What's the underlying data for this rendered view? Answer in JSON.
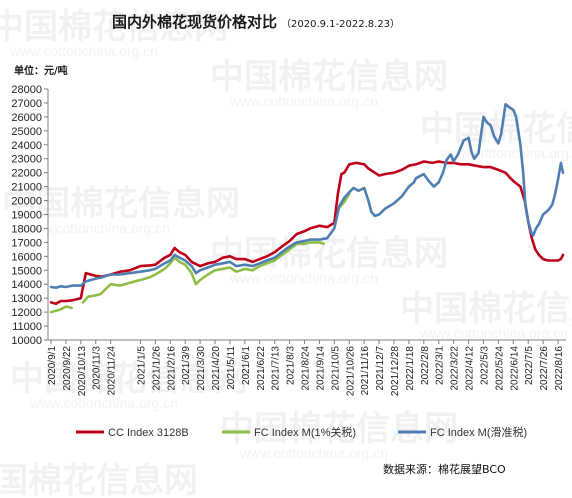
{
  "chart_data": {
    "type": "line",
    "title": "国内外棉花现货价格对比",
    "subtitle": "（2020.9.1-2022.8.23）",
    "unit_label": "单位：元/吨",
    "ylim": [
      10000,
      28000
    ],
    "yticks": [
      10000,
      11000,
      12000,
      13000,
      14000,
      15000,
      16000,
      17000,
      18000,
      19000,
      20000,
      21000,
      22000,
      23000,
      24000,
      25000,
      26000,
      27000,
      28000
    ],
    "x_start": "2020/9/1",
    "x_end": "2022/8/23",
    "categories": [
      "2020/9/1",
      "2020/9/22",
      "2020/10/13",
      "2020/11/3",
      "2020/11/24",
      "2021/1/5",
      "2021/1/26",
      "2021/2/16",
      "2021/3/9",
      "2021/3/30",
      "2021/4/20",
      "2021/5/11",
      "2021/6/1",
      "2021/6/22",
      "2021/7/13",
      "2021/8/3",
      "2021/8/24",
      "2021/9/14",
      "2021/10/5",
      "2021/10/26",
      "2021/11/16",
      "2021/12/7",
      "2021/12/28",
      "2022/1/18",
      "2022/2/8",
      "2022/3/1",
      "2022/3/22",
      "2022/4/12",
      "2022/5/3",
      "2022/5/24",
      "2022/6/14",
      "2022/7/5",
      "2022/7/26",
      "2022/8/16"
    ],
    "grid": false,
    "legend_position": "bottom",
    "series": [
      {
        "name": "CC Index 3128B",
        "color": "#c0001a",
        "points": [
          [
            "2020/9/1",
            12700
          ],
          [
            "2020/9/8",
            12600
          ],
          [
            "2020/9/15",
            12800
          ],
          [
            "2020/9/22",
            12800
          ],
          [
            "2020/10/1",
            12850
          ],
          [
            "2020/10/13",
            13000
          ],
          [
            "2020/10/20",
            14800
          ],
          [
            "2020/10/27",
            14700
          ],
          [
            "2020/11/3",
            14600
          ],
          [
            "2020/11/12",
            14550
          ],
          [
            "2020/11/24",
            14700
          ],
          [
            "2020/12/7",
            14900
          ],
          [
            "2020/12/21",
            15000
          ],
          [
            "2021/1/5",
            15300
          ],
          [
            "2021/1/18",
            15350
          ],
          [
            "2021/1/26",
            15400
          ],
          [
            "2021/2/8",
            15900
          ],
          [
            "2021/2/16",
            16100
          ],
          [
            "2021/2/22",
            16600
          ],
          [
            "2021/3/1",
            16300
          ],
          [
            "2021/3/9",
            16100
          ],
          [
            "2021/3/18",
            15600
          ],
          [
            "2021/3/30",
            15300
          ],
          [
            "2021/4/10",
            15500
          ],
          [
            "2021/4/20",
            15600
          ],
          [
            "2021/5/1",
            15900
          ],
          [
            "2021/5/11",
            16000
          ],
          [
            "2021/5/20",
            15800
          ],
          [
            "2021/6/1",
            15800
          ],
          [
            "2021/6/12",
            15600
          ],
          [
            "2021/6/22",
            15800
          ],
          [
            "2021/7/2",
            16000
          ],
          [
            "2021/7/13",
            16300
          ],
          [
            "2021/7/23",
            16700
          ],
          [
            "2021/8/3",
            17100
          ],
          [
            "2021/8/13",
            17600
          ],
          [
            "2021/8/24",
            17800
          ],
          [
            "2021/9/1",
            18000
          ],
          [
            "2021/9/14",
            18200
          ],
          [
            "2021/9/25",
            18100
          ],
          [
            "2021/10/5",
            18400
          ],
          [
            "2021/10/10",
            20500
          ],
          [
            "2021/10/15",
            21900
          ],
          [
            "2021/10/19",
            22000
          ],
          [
            "2021/10/26",
            22600
          ],
          [
            "2021/11/5",
            22700
          ],
          [
            "2021/11/16",
            22600
          ],
          [
            "2021/11/22",
            22300
          ],
          [
            "2021/12/1",
            22000
          ],
          [
            "2021/12/7",
            21800
          ],
          [
            "2021/12/15",
            21900
          ],
          [
            "2021/12/28",
            22000
          ],
          [
            "2022/1/8",
            22200
          ],
          [
            "2022/1/18",
            22500
          ],
          [
            "2022/1/28",
            22600
          ],
          [
            "2022/2/8",
            22800
          ],
          [
            "2022/2/20",
            22700
          ],
          [
            "2022/3/1",
            22800
          ],
          [
            "2022/3/12",
            22700
          ],
          [
            "2022/3/22",
            22700
          ],
          [
            "2022/4/1",
            22600
          ],
          [
            "2022/4/12",
            22600
          ],
          [
            "2022/4/22",
            22500
          ],
          [
            "2022/5/3",
            22400
          ],
          [
            "2022/5/13",
            22400
          ],
          [
            "2022/5/24",
            22200
          ],
          [
            "2022/6/3",
            22000
          ],
          [
            "2022/6/10",
            21600
          ],
          [
            "2022/6/14",
            21400
          ],
          [
            "2022/6/24",
            21000
          ],
          [
            "2022/6/30",
            20000
          ],
          [
            "2022/7/5",
            18500
          ],
          [
            "2022/7/10",
            17300
          ],
          [
            "2022/7/15",
            16500
          ],
          [
            "2022/7/20",
            16100
          ],
          [
            "2022/7/26",
            15800
          ],
          [
            "2022/8/2",
            15700
          ],
          [
            "2022/8/10",
            15700
          ],
          [
            "2022/8/16",
            15700
          ],
          [
            "2022/8/20",
            15800
          ],
          [
            "2022/8/23",
            16100
          ]
        ]
      },
      {
        "name": "FC Index M(1%关税)",
        "color": "#8fbe47",
        "points": [
          [
            "2020/9/1",
            12000
          ],
          [
            "2020/9/8",
            12100
          ],
          [
            "2020/9/15",
            12200
          ],
          [
            "2020/9/22",
            12400
          ],
          [
            "2020/9/30",
            12300
          ],
          [
            "2020/10/13",
            null
          ],
          [
            "2020/10/16",
            12700
          ],
          [
            "2020/10/23",
            13100
          ],
          [
            "2020/11/3",
            13200
          ],
          [
            "2020/11/10",
            13300
          ],
          [
            "2020/11/24",
            14000
          ],
          [
            "2020/12/7",
            13900
          ],
          [
            "2020/12/21",
            14100
          ],
          [
            "2021/1/5",
            14300
          ],
          [
            "2021/1/18",
            14500
          ],
          [
            "2021/1/26",
            14700
          ],
          [
            "2021/2/8",
            15100
          ],
          [
            "2021/2/16",
            15500
          ],
          [
            "2021/2/22",
            15900
          ],
          [
            "2021/3/1",
            15600
          ],
          [
            "2021/3/9",
            15400
          ],
          [
            "2021/3/18",
            14800
          ],
          [
            "2021/3/24",
            14000
          ],
          [
            "2021/3/30",
            14300
          ],
          [
            "2021/4/10",
            14700
          ],
          [
            "2021/4/20",
            15000
          ],
          [
            "2021/5/1",
            15100
          ],
          [
            "2021/5/11",
            15200
          ],
          [
            "2021/5/20",
            14900
          ],
          [
            "2021/6/1",
            15100
          ],
          [
            "2021/6/12",
            15000
          ],
          [
            "2021/6/22",
            15300
          ],
          [
            "2021/7/2",
            15500
          ],
          [
            "2021/7/13",
            15700
          ],
          [
            "2021/7/23",
            16100
          ],
          [
            "2021/8/3",
            16500
          ],
          [
            "2021/8/13",
            16900
          ],
          [
            "2021/8/24",
            16900
          ],
          [
            "2021/9/1",
            17000
          ],
          [
            "2021/9/14",
            17000
          ],
          [
            "2021/9/20",
            16900
          ],
          [
            "2021/9/25",
            null
          ],
          [
            "2021/10/12",
            19500
          ],
          [
            "2021/10/19",
            19900
          ],
          [
            "2021/10/26",
            20500
          ],
          [
            "2021/10/30",
            null
          ]
        ]
      },
      {
        "name": "FC Index M(滑准税)",
        "color": "#4f7fb0",
        "points": [
          [
            "2020/9/1",
            13800
          ],
          [
            "2020/9/8",
            13750
          ],
          [
            "2020/9/15",
            13850
          ],
          [
            "2020/9/22",
            13800
          ],
          [
            "2020/10/1",
            13900
          ],
          [
            "2020/10/13",
            13900
          ],
          [
            "2020/10/20",
            14200
          ],
          [
            "2020/10/27",
            14300
          ],
          [
            "2020/11/3",
            14400
          ],
          [
            "2020/11/12",
            14500
          ],
          [
            "2020/11/24",
            14700
          ],
          [
            "2020/12/7",
            14700
          ],
          [
            "2020/12/21",
            14800
          ],
          [
            "2021/1/5",
            14900
          ],
          [
            "2021/1/18",
            15000
          ],
          [
            "2021/1/26",
            15100
          ],
          [
            "2021/2/8",
            15500
          ],
          [
            "2021/2/16",
            15700
          ],
          [
            "2021/2/22",
            16100
          ],
          [
            "2021/3/1",
            15900
          ],
          [
            "2021/3/9",
            15700
          ],
          [
            "2021/3/18",
            15300
          ],
          [
            "2021/3/24",
            14800
          ],
          [
            "2021/3/30",
            15000
          ],
          [
            "2021/4/10",
            15200
          ],
          [
            "2021/4/20",
            15400
          ],
          [
            "2021/5/1",
            15500
          ],
          [
            "2021/5/11",
            15600
          ],
          [
            "2021/5/20",
            15300
          ],
          [
            "2021/6/1",
            15400
          ],
          [
            "2021/6/12",
            15300
          ],
          [
            "2021/6/22",
            15500
          ],
          [
            "2021/7/2",
            15700
          ],
          [
            "2021/7/13",
            15900
          ],
          [
            "2021/7/23",
            16300
          ],
          [
            "2021/8/3",
            16700
          ],
          [
            "2021/8/13",
            17000
          ],
          [
            "2021/8/24",
            17100
          ],
          [
            "2021/9/1",
            17200
          ],
          [
            "2021/9/14",
            17200
          ],
          [
            "2021/9/25",
            17300
          ],
          [
            "2021/10/5",
            18000
          ],
          [
            "2021/10/12",
            19600
          ],
          [
            "2021/10/19",
            20200
          ],
          [
            "2021/10/26",
            20600
          ],
          [
            "2021/11/1",
            20900
          ],
          [
            "2021/11/8",
            20700
          ],
          [
            "2021/11/16",
            20900
          ],
          [
            "2021/11/22",
            20000
          ],
          [
            "2021/11/26",
            19200
          ],
          [
            "2021/12/1",
            18900
          ],
          [
            "2021/12/7",
            19000
          ],
          [
            "2021/12/15",
            19400
          ],
          [
            "2021/12/28",
            19800
          ],
          [
            "2022/1/8",
            20300
          ],
          [
            "2022/1/18",
            21000
          ],
          [
            "2022/1/25",
            21300
          ],
          [
            "2022/1/28",
            21600
          ],
          [
            "2022/2/8",
            21900
          ],
          [
            "2022/2/15",
            21400
          ],
          [
            "2022/2/22",
            21000
          ],
          [
            "2022/3/1",
            21300
          ],
          [
            "2022/3/7",
            22000
          ],
          [
            "2022/3/12",
            22900
          ],
          [
            "2022/3/18",
            23300
          ],
          [
            "2022/3/22",
            22800
          ],
          [
            "2022/3/28",
            23300
          ],
          [
            "2022/4/5",
            24300
          ],
          [
            "2022/4/12",
            24500
          ],
          [
            "2022/4/16",
            23500
          ],
          [
            "2022/4/20",
            23000
          ],
          [
            "2022/4/26",
            23400
          ],
          [
            "2022/5/3",
            26000
          ],
          [
            "2022/5/8",
            25600
          ],
          [
            "2022/5/13",
            25400
          ],
          [
            "2022/5/18",
            24600
          ],
          [
            "2022/5/24",
            24100
          ],
          [
            "2022/5/28",
            24800
          ],
          [
            "2022/6/3",
            26900
          ],
          [
            "2022/6/8",
            26700
          ],
          [
            "2022/6/14",
            26500
          ],
          [
            "2022/6/18",
            26000
          ],
          [
            "2022/6/24",
            24000
          ],
          [
            "2022/6/28",
            22000
          ],
          [
            "2022/7/1",
            19700
          ],
          [
            "2022/7/5",
            18500
          ],
          [
            "2022/7/10",
            17600
          ],
          [
            "2022/7/12",
            17500
          ],
          [
            "2022/7/16",
            18000
          ],
          [
            "2022/7/20",
            18300
          ],
          [
            "2022/7/26",
            19000
          ],
          [
            "2022/8/2",
            19300
          ],
          [
            "2022/8/8",
            19700
          ],
          [
            "2022/8/12",
            20500
          ],
          [
            "2022/8/16",
            21500
          ],
          [
            "2022/8/20",
            22700
          ],
          [
            "2022/8/23",
            22000
          ]
        ]
      }
    ],
    "source": "数据来源：棉花展望BCO"
  },
  "watermark": {
    "brand": "中国棉花信息网",
    "url": "www.cottonchina.org.cn"
  }
}
